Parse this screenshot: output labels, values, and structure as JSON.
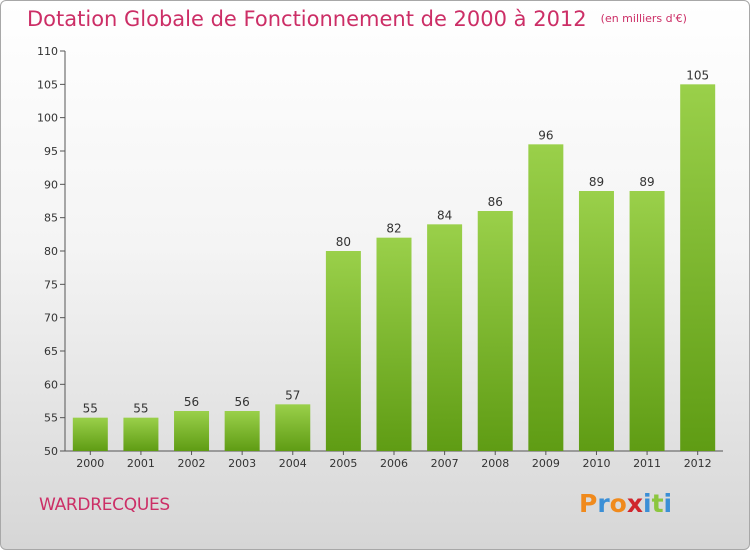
{
  "title": "Dotation Globale de Fonctionnement de 2000 à 2012",
  "subtitle": "(en milliers d'€)",
  "commune": "WARDRECQUES",
  "logo": {
    "letters": [
      "P",
      "r",
      "o",
      "x",
      "i",
      "t",
      "i"
    ],
    "colors": [
      "#f08a1c",
      "#3b8fd6",
      "#f08a1c",
      "#d0262d",
      "#3b8fd6",
      "#8cc63f",
      "#3b8fd6"
    ]
  },
  "colors": {
    "bar_light": "#9ad04a",
    "bar_dark": "#5f9c14",
    "title": "#cc2e66"
  },
  "chart_data": {
    "type": "bar",
    "title": "Dotation Globale de Fonctionnement de 2000 à 2012",
    "subtitle": "(en milliers d'€)",
    "categories": [
      "2000",
      "2001",
      "2002",
      "2003",
      "2004",
      "2005",
      "2006",
      "2007",
      "2008",
      "2009",
      "2010",
      "2011",
      "2012"
    ],
    "values": [
      55,
      55,
      56,
      56,
      57,
      80,
      82,
      84,
      86,
      96,
      89,
      89,
      105
    ],
    "ylim": [
      50,
      110
    ],
    "yticks": [
      50,
      55,
      60,
      65,
      70,
      75,
      80,
      85,
      90,
      95,
      100,
      105,
      110
    ],
    "grid": false,
    "legend": "none"
  }
}
